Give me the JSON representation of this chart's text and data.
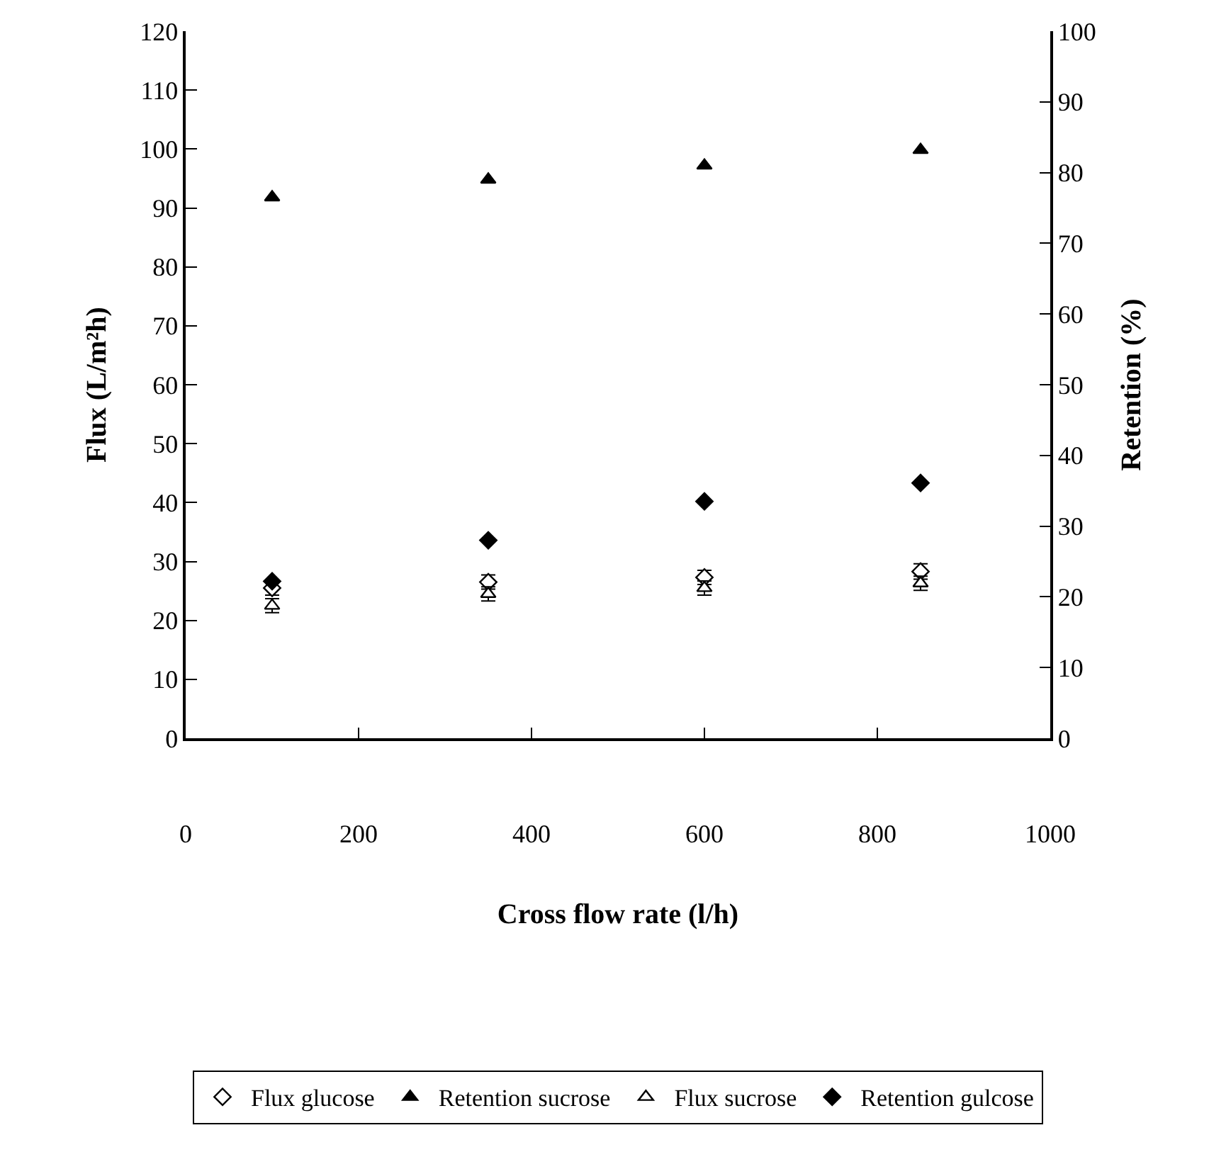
{
  "chart_data": {
    "type": "scatter",
    "xlabel": "Cross flow rate (l/h)",
    "ylabel": "Flux (L/m²h)",
    "y2label": "Retention (%)",
    "x": [
      100,
      350,
      600,
      850
    ],
    "xlim": [
      0,
      1000
    ],
    "xticks": [
      0,
      200,
      400,
      600,
      800,
      1000
    ],
    "ylim": [
      0,
      120
    ],
    "yticks": [
      0,
      10,
      20,
      30,
      40,
      50,
      60,
      70,
      80,
      90,
      100,
      110,
      120
    ],
    "y2lim": [
      0,
      100
    ],
    "y2ticks": [
      0,
      10,
      20,
      30,
      40,
      50,
      60,
      70,
      80,
      90,
      100
    ],
    "legend": "bottom",
    "series": [
      {
        "name": "Flux glucose",
        "color": "#ffffff",
        "marker": "diamond",
        "values": [
          25.5,
          26.5,
          27.3,
          28.3
        ],
        "errors": [
          1.2,
          1.2,
          1.2,
          1.3
        ]
      },
      {
        "name": "Retention sucrose",
        "color": "#000000",
        "marker": "triangle",
        "axis": "y2",
        "values": [
          76.5,
          79,
          81,
          83.2
        ]
      },
      {
        "name": "Flux sucrose",
        "color": "#ffffff",
        "marker": "triangle",
        "values": [
          22.5,
          24.5,
          25.5,
          26.3
        ],
        "errors": [
          1.2,
          1.2,
          1.2,
          1.2
        ]
      },
      {
        "name": "Retention gulcose",
        "color": "#000000",
        "marker": "diamond",
        "axis": "y2",
        "values": [
          22.2,
          28,
          33.5,
          36.1
        ]
      }
    ]
  }
}
